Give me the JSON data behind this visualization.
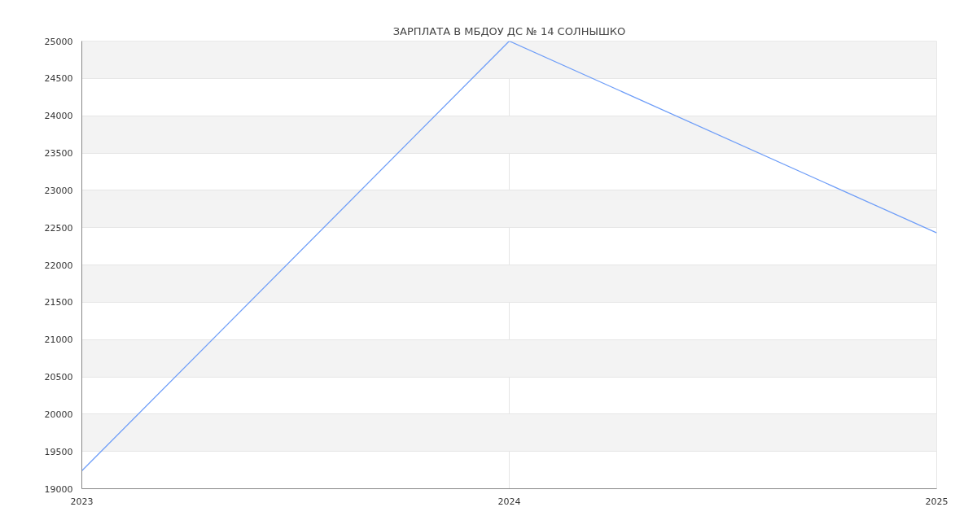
{
  "chart_data": {
    "type": "line",
    "title": "ЗАРПЛАТА В МБДОУ ДС № 14 СОЛНЫШКО",
    "x": [
      2023,
      2024,
      2025
    ],
    "series": [
      {
        "color": "#6f9ef8",
        "values": [
          19240,
          25000,
          22430
        ]
      }
    ],
    "xlim": [
      2023,
      2025
    ],
    "xticks": [
      2023,
      2024,
      2025
    ],
    "ylim": [
      19000,
      25000
    ],
    "yticks": [
      19000,
      19500,
      20000,
      20500,
      21000,
      21500,
      22000,
      22500,
      23000,
      23500,
      24000,
      24500,
      25000
    ],
    "grid": true,
    "marker": "none",
    "line_style": "solid"
  }
}
